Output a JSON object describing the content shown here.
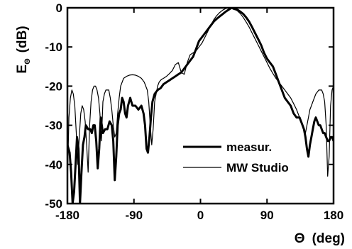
{
  "chart_data": {
    "type": "line",
    "xlabel_symbol": "Θ",
    "xlabel_unit": "(deg)",
    "ylabel_symbol": "E",
    "ylabel_sub": "Θ",
    "ylabel_unit": "(dB)",
    "xlim": [
      -180,
      180
    ],
    "ylim": [
      -50,
      0
    ],
    "xticks": [
      -180,
      -90,
      0,
      90,
      180
    ],
    "yticks": [
      0,
      -10,
      -20,
      -30,
      -40,
      -50
    ],
    "grid": false,
    "legend_position": "bottom-right",
    "series": [
      {
        "name": "measur.",
        "style": "thick",
        "x": [
          -180,
          -177,
          -175,
          -173,
          -171,
          -169,
          -167,
          -165,
          -163,
          -161,
          -159,
          -157,
          -155,
          -152,
          -149,
          -147,
          -145,
          -143,
          -141,
          -139,
          -137,
          -135,
          -132,
          -129,
          -126,
          -123,
          -120,
          -118,
          -116,
          -114,
          -112,
          -110,
          -108,
          -106,
          -104,
          -102,
          -100,
          -98,
          -95,
          -92,
          -88,
          -84,
          -80,
          -77,
          -75,
          -73,
          -71,
          -69,
          -67,
          -65,
          -62,
          -58,
          -54,
          -50,
          -46,
          -42,
          -38,
          -34,
          -30,
          -26,
          -22,
          -18,
          -14,
          -10,
          -6,
          -2,
          2,
          6,
          10,
          14,
          18,
          22,
          26,
          30,
          34,
          38,
          42,
          46,
          50,
          54,
          58,
          62,
          66,
          70,
          74,
          78,
          82,
          86,
          90,
          94,
          98,
          102,
          106,
          110,
          114,
          118,
          122,
          126,
          130,
          134,
          138,
          140,
          142,
          144,
          146,
          148,
          150,
          152,
          154,
          156,
          158,
          160,
          162,
          164,
          166,
          168,
          170,
          172,
          174,
          176,
          178,
          180
        ],
        "y": [
          -35,
          -37,
          -42,
          -50,
          -47,
          -40,
          -33,
          -36,
          -50,
          -42,
          -35,
          -33,
          -30,
          -31,
          -31,
          -32,
          -30,
          -30,
          -34,
          -41,
          -36,
          -28,
          -32,
          -31,
          -31,
          -29,
          -30,
          -34,
          -44,
          -38,
          -30,
          -27,
          -26,
          -23,
          -24,
          -27,
          -28,
          -25,
          -23,
          -25,
          -25,
          -26,
          -25,
          -27,
          -30,
          -36,
          -37,
          -33,
          -28,
          -24,
          -22,
          -21,
          -20.5,
          -19.5,
          -19,
          -18.5,
          -18,
          -17.5,
          -17,
          -16.5,
          -15.5,
          -14.5,
          -13.5,
          -12.5,
          -10.5,
          -8.5,
          -7.5,
          -6.5,
          -5.5,
          -4.5,
          -3.5,
          -2.8,
          -2.2,
          -1.6,
          -1.0,
          -0.5,
          0,
          -0.3,
          -0.5,
          -1.0,
          -1.6,
          -2.5,
          -3.6,
          -5.0,
          -6.5,
          -8.0,
          -9.5,
          -11.5,
          -13,
          -14,
          -15,
          -17,
          -19,
          -21,
          -23,
          -24,
          -25,
          -27,
          -28,
          -28,
          -30,
          -31,
          -33,
          -36,
          -38,
          -35,
          -33,
          -31,
          -29,
          -28,
          -29,
          -30,
          -30,
          -31,
          -32,
          -32,
          -33,
          -34,
          -34,
          -33,
          -33,
          -34
        ]
      },
      {
        "name": "MW Studio",
        "style": "thin",
        "x": [
          -180,
          -178,
          -176,
          -174,
          -172,
          -170,
          -168,
          -166,
          -164,
          -162,
          -160,
          -158,
          -156,
          -154,
          -152,
          -150,
          -148,
          -146,
          -144,
          -142,
          -140,
          -138,
          -136,
          -134,
          -132,
          -130,
          -128,
          -126,
          -124,
          -122,
          -120,
          -118,
          -116,
          -114,
          -112,
          -110,
          -108,
          -106,
          -104,
          -100,
          -96,
          -92,
          -88,
          -84,
          -80,
          -76,
          -72,
          -70,
          -68,
          -66,
          -64,
          -62,
          -60,
          -58,
          -56,
          -54,
          -52,
          -50,
          -46,
          -42,
          -38,
          -34,
          -30,
          -26,
          -22,
          -18,
          -14,
          -10,
          -6,
          -2,
          2,
          6,
          10,
          14,
          18,
          22,
          26,
          30,
          34,
          38,
          42,
          46,
          50,
          54,
          58,
          62,
          66,
          70,
          74,
          78,
          82,
          86,
          90,
          94,
          98,
          102,
          106,
          110,
          114,
          118,
          122,
          126,
          130,
          134,
          138,
          140,
          142,
          144,
          146,
          148,
          150,
          152,
          154,
          156,
          158,
          160,
          162,
          164,
          166,
          168,
          170,
          172,
          174,
          176,
          178,
          180
        ],
        "y": [
          -45,
          -28,
          -23,
          -21,
          -22,
          -25,
          -32,
          -40,
          -33,
          -27,
          -25,
          -26,
          -29,
          -35,
          -42,
          -30,
          -24,
          -21,
          -20,
          -20,
          -21,
          -23,
          -27,
          -34,
          -24,
          -22,
          -21,
          -21,
          -21,
          -23,
          -26,
          -30,
          -33,
          -32,
          -27,
          -23,
          -20,
          -19,
          -18,
          -17.5,
          -17.2,
          -17.1,
          -17.2,
          -17.5,
          -18,
          -19,
          -21,
          -24,
          -30,
          -35,
          -31,
          -24,
          -22,
          -20,
          -19,
          -18.5,
          -18.2,
          -18,
          -17.5,
          -16.8,
          -16,
          -14.5,
          -14,
          -16.5,
          -17,
          -14,
          -12,
          -11.5,
          -11,
          -10,
          -9,
          -7.5,
          -6,
          -4.5,
          -3,
          -2,
          -1.2,
          -0.6,
          -0.2,
          0,
          0,
          -0.3,
          -0.8,
          -1.5,
          -2.5,
          -3.7,
          -5,
          -6.5,
          -8,
          -9.5,
          -11,
          -12.5,
          -14,
          -15.5,
          -16.8,
          -18,
          -19,
          -20,
          -21,
          -22,
          -23,
          -24.5,
          -26,
          -28,
          -30,
          -31,
          -32,
          -30,
          -28,
          -26,
          -25,
          -24,
          -23,
          -22,
          -21.5,
          -21,
          -21,
          -21,
          -22,
          -24,
          -30,
          -43,
          -38,
          -25,
          -21,
          -20
        ]
      }
    ]
  }
}
